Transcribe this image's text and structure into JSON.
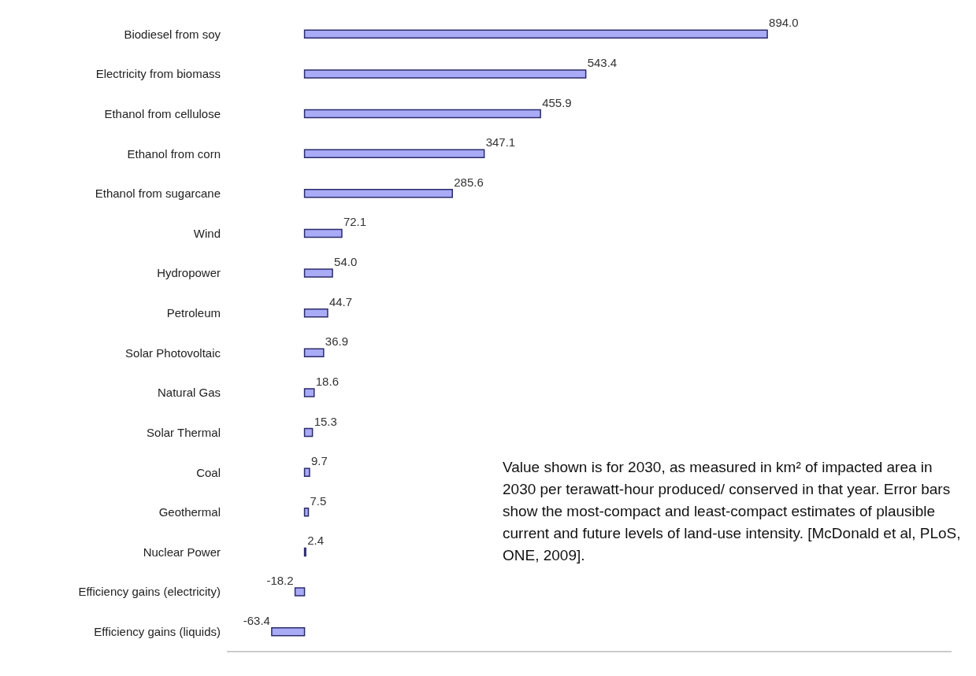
{
  "chart_data": {
    "type": "bar",
    "orientation": "horizontal",
    "categories": [
      "Biodiesel from soy",
      "Electricity from biomass",
      "Ethanol from cellulose",
      "Ethanol from corn",
      "Ethanol from sugarcane",
      "Wind",
      "Hydropower",
      "Petroleum",
      "Solar Photovoltaic",
      "Natural Gas",
      "Solar Thermal",
      "Coal",
      "Geothermal",
      "Nuclear Power",
      "Efficiency gains (electricity)",
      "Efficiency gains (liquids)"
    ],
    "values": [
      894.0,
      543.4,
      455.9,
      347.1,
      285.6,
      72.1,
      54.0,
      44.7,
      36.9,
      18.6,
      15.3,
      9.7,
      7.5,
      2.4,
      -18.2,
      -63.4
    ],
    "color": "#a9abf7",
    "value_labels": [
      "894.0",
      "543.4",
      "455.9",
      "347.1",
      "285.6",
      "72.1",
      "54.0",
      "44.7",
      "36.9",
      "18.6",
      "15.3",
      "9.7",
      "7.5",
      "2.4",
      "-18.2",
      "-63.4"
    ],
    "xlim": [
      -150,
      1250
    ],
    "tick_labels": "y",
    "annotations": [
      "Value shown is for 2030, as measured in km² of impacted area in 2030 per terawatt-hour produced/ conserved in that year. Error bars show the most-compact and least-compact estimates of plausible current and future levels of land-use intensity. [McDonald et al, PLoS, ONE, 2009]."
    ]
  }
}
